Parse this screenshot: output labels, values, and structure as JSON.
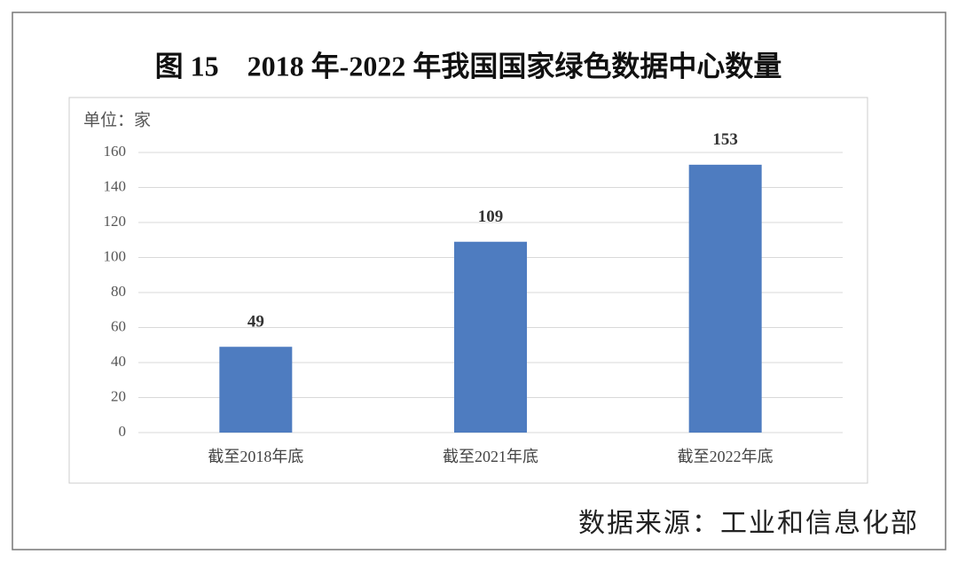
{
  "chart_data": {
    "type": "bar",
    "title": "图 15　2018 年-2022 年我国国家绿色数据中心数量",
    "y_label": "单位：家",
    "source": "数据来源：工业和信息化部",
    "categories": [
      "截至2018年底",
      "截至2021年底",
      "截至2022年底"
    ],
    "values": [
      49,
      109,
      153
    ],
    "color": "#4e7cc0",
    "ylim": [
      0,
      160
    ],
    "yticks": [
      0,
      20,
      40,
      60,
      80,
      100,
      120,
      140,
      160
    ],
    "grid": true
  }
}
